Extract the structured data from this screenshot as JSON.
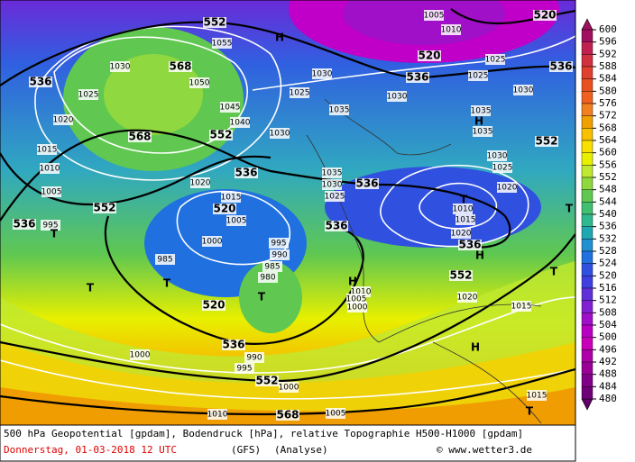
{
  "map": {
    "isobar_labels": [
      1030,
      1025,
      1020,
      1015,
      1010,
      1005,
      995,
      1055,
      1050,
      1045,
      1040,
      1030,
      1025,
      1035,
      1030,
      1030,
      1025,
      1030,
      1035,
      1035,
      1030,
      1025,
      1020,
      1035,
      1030,
      1025,
      1020,
      1015,
      1005,
      1000,
      985,
      995,
      990,
      985,
      980,
      1010,
      1005,
      1000,
      1010,
      1015,
      1020,
      1020,
      1015,
      1000,
      995,
      990,
      1000,
      1005,
      1010,
      1015,
      1025,
      1005,
      1010
    ],
    "geopotential_labels": [
      552,
      568,
      536,
      552,
      568,
      536,
      552,
      536,
      520,
      520,
      536,
      552,
      568,
      536,
      520,
      520,
      536,
      552,
      536,
      536,
      536,
      552
    ],
    "pressure_centers": [
      "H",
      "H",
      "T",
      "T",
      "T",
      "T",
      "T",
      "H",
      "H",
      "T",
      "T",
      "H",
      "T"
    ],
    "colorbar": {
      "ticks": [
        600,
        596,
        592,
        588,
        584,
        580,
        576,
        572,
        568,
        564,
        560,
        556,
        552,
        548,
        544,
        540,
        536,
        532,
        528,
        524,
        520,
        516,
        512,
        508,
        504,
        500,
        496,
        492,
        488,
        484,
        480
      ],
      "colors": [
        "#a01060",
        "#c02050",
        "#d03040",
        "#e04030",
        "#e85020",
        "#f06020",
        "#f08020",
        "#f0a000",
        "#f8c000",
        "#f8e000",
        "#e8f000",
        "#c0e830",
        "#90d840",
        "#60c850",
        "#40c070",
        "#30b890",
        "#20a8b0",
        "#2090d0",
        "#2070e0",
        "#3050e0",
        "#4040e0",
        "#6030d8",
        "#8020d0",
        "#a010c8",
        "#b800c0",
        "#c800b8",
        "#b000a8",
        "#980098",
        "#800088",
        "#700078",
        "#600068"
      ]
    },
    "footer": {
      "line1": "500 hPa Geopotential [gpdam], Bodendruck [hPa], relative Topographie H500-H1000 [gpdam]",
      "date": "Donnerstag, 01-03-2018  12 UTC",
      "model": "(GFS)",
      "run": "(Analyse)",
      "credit": "© www.wetter3.de"
    }
  }
}
